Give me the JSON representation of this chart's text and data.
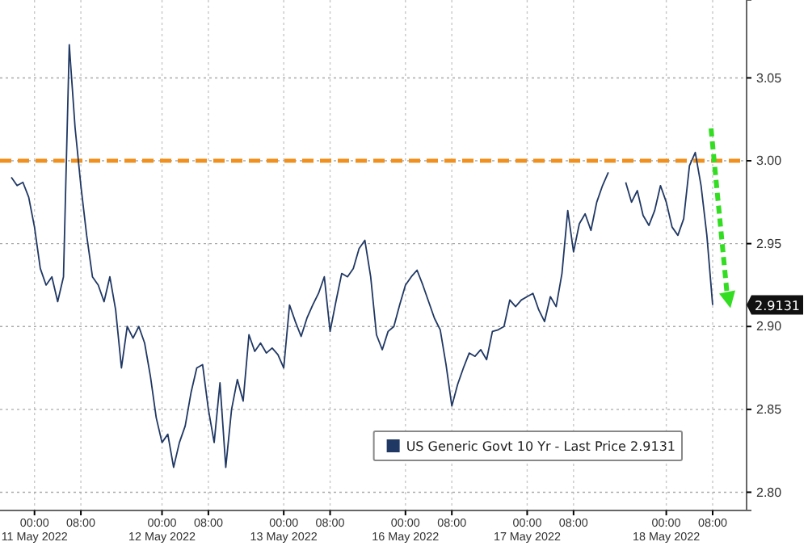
{
  "chart_data": {
    "type": "line",
    "categories": [
      null,
      null,
      null,
      null,
      "00:00\n11 May 2022",
      null,
      null,
      null,
      null,
      null,
      null,
      null,
      "08:00",
      null,
      null,
      null,
      null,
      null,
      null,
      null,
      null,
      null,
      null,
      null,
      null,
      null,
      "00:00\n12 May 2022",
      null,
      null,
      null,
      null,
      null,
      null,
      null,
      "08:00",
      null,
      null,
      null,
      null,
      null,
      null,
      null,
      null,
      null,
      null,
      null,
      null,
      "00:00\n13 May 2022",
      null,
      null,
      null,
      null,
      null,
      null,
      null,
      "08:00",
      null,
      null,
      null,
      null,
      null,
      null,
      null,
      null,
      null,
      null,
      null,
      null,
      "00:00\n16 May 2022",
      null,
      null,
      null,
      null,
      null,
      null,
      null,
      "08:00",
      null,
      null,
      null,
      null,
      null,
      null,
      null,
      null,
      null,
      null,
      null,
      null,
      "00:00\n17 May 2022",
      null,
      null,
      null,
      null,
      null,
      null,
      null,
      "08:00",
      null,
      null,
      null,
      null,
      null,
      null,
      null,
      null,
      null,
      null,
      null,
      null,
      null,
      null,
      null,
      "00:00\n18 May 2022",
      null,
      null,
      null,
      null,
      null,
      null,
      null,
      "08:00"
    ],
    "series": [
      {
        "name": "US Generic Govt 10 Yr - Last Price 2.9131",
        "color": "#203864",
        "values": [
          2.99,
          2.985,
          2.987,
          2.978,
          2.96,
          2.935,
          2.925,
          2.93,
          2.915,
          2.93,
          3.07,
          3.02,
          2.985,
          2.955,
          2.93,
          2.925,
          2.915,
          2.93,
          2.91,
          2.875,
          2.9,
          2.893,
          2.9,
          2.89,
          2.87,
          2.845,
          2.83,
          2.835,
          2.815,
          2.83,
          2.84,
          2.86,
          2.875,
          2.877,
          2.85,
          2.83,
          2.866,
          2.815,
          2.85,
          2.868,
          2.855,
          2.895,
          2.885,
          2.89,
          2.884,
          2.887,
          2.883,
          2.875,
          2.913,
          2.903,
          2.894,
          2.905,
          2.913,
          2.92,
          2.93,
          2.897,
          2.915,
          2.932,
          2.93,
          2.935,
          2.947,
          2.952,
          2.93,
          2.895,
          2.886,
          2.897,
          2.9,
          2.913,
          2.925,
          2.93,
          2.934,
          2.925,
          2.915,
          2.905,
          2.898,
          2.877,
          2.852,
          2.865,
          2.875,
          2.884,
          2.882,
          2.886,
          2.88,
          2.897,
          2.898,
          2.9,
          2.916,
          2.912,
          2.916,
          2.918,
          2.92,
          2.91,
          2.903,
          2.918,
          2.912,
          2.932,
          2.97,
          2.945,
          2.962,
          2.968,
          2.958,
          2.975,
          2.985,
          2.993,
          null,
          null,
          2.987,
          2.975,
          2.982,
          2.967,
          2.961,
          2.97,
          2.985,
          2.975,
          2.96,
          2.955,
          2.965,
          2.997,
          3.005,
          2.985,
          2.955,
          2.913
        ]
      }
    ],
    "ylim": [
      2.789,
      3.097
    ],
    "yticks": [
      {
        "value": 2.8,
        "label": "2.80"
      },
      2.85,
      {
        "value": 2.9,
        "label": "2.90"
      },
      2.95,
      {
        "value": 3.0,
        "label": "3.00"
      },
      3.05
    ],
    "grid": true,
    "legend": "bottom right",
    "line_style": "solid",
    "annotations": [
      "2.9131"
    ],
    "ref_lines": [
      {
        "axis": "y",
        "value": 3.0,
        "color": "#f0901e",
        "line_style": "dashed"
      }
    ]
  }
}
